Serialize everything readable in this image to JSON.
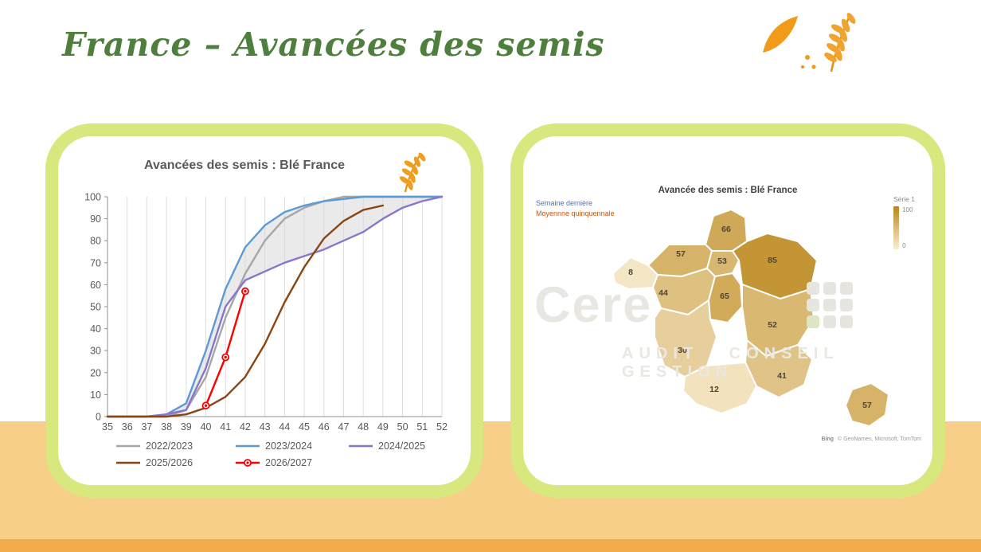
{
  "page": {
    "title": "France – Avancées des semis"
  },
  "icons": {
    "leaf": "leaf-icon",
    "wheat": "wheat-ear-icon",
    "dots": "scatter-dots-icon"
  },
  "chart_data": [
    {
      "type": "line",
      "title": "Avancées des semis : Blé France",
      "x": [
        35,
        36,
        37,
        38,
        39,
        40,
        41,
        42,
        43,
        44,
        45,
        46,
        47,
        48,
        49,
        50,
        51,
        52
      ],
      "xlabel": "",
      "ylabel": "",
      "ylim": [
        0,
        100
      ],
      "yticks": [
        0,
        10,
        20,
        30,
        40,
        50,
        60,
        70,
        80,
        90,
        100
      ],
      "grid": "vertical",
      "legend_position": "bottom",
      "series": [
        {
          "name": "2022/2023",
          "color": "#a6a6a6",
          "values": [
            0,
            0,
            0,
            0,
            3,
            18,
            45,
            65,
            80,
            90,
            95,
            98,
            100,
            100,
            100,
            100,
            100,
            100
          ]
        },
        {
          "name": "2023/2024",
          "color": "#5b9bd5",
          "values": [
            0,
            0,
            0,
            1,
            6,
            30,
            58,
            77,
            87,
            93,
            96,
            98,
            99,
            100,
            100,
            100,
            100,
            100
          ]
        },
        {
          "name": "2024/2025",
          "color": "#8a75cc",
          "values": [
            0,
            0,
            0,
            1,
            3,
            22,
            50,
            62,
            66,
            70,
            73,
            76,
            80,
            84,
            90,
            95,
            98,
            100
          ]
        },
        {
          "name": "2025/2026",
          "color": "#8a4512",
          "values": [
            0,
            0,
            0,
            0,
            1,
            4,
            9,
            18,
            33,
            52,
            68,
            81,
            89,
            94,
            96,
            null,
            null,
            null
          ]
        },
        {
          "name": "2026/2027",
          "color": "#ff0000",
          "marker": "circle",
          "values": [
            null,
            null,
            null,
            null,
            null,
            5,
            27,
            57,
            null,
            null,
            null,
            null,
            null,
            null,
            null,
            null,
            null,
            null
          ]
        }
      ],
      "band": {
        "between": [
          "2023/2024",
          "2024/2025"
        ],
        "color": "#d9d9d9"
      }
    },
    {
      "type": "heatmap",
      "title": "Avancée des semis : Blé France",
      "legend": [
        {
          "label": "Semaine dernière",
          "color": "#4472c4"
        },
        {
          "label": "Moyennne quinquennale",
          "color": "#cc5510"
        }
      ],
      "scale": {
        "label": "Série 1",
        "max": "100",
        "min": "0",
        "low_color": "#f9efd5",
        "high_color": "#bb8517"
      },
      "regions": [
        {
          "value": 66
        },
        {
          "value": 57
        },
        {
          "value": 53
        },
        {
          "value": 85
        },
        {
          "value": 8
        },
        {
          "value": 44
        },
        {
          "value": 65
        },
        {
          "value": 52
        },
        {
          "value": 30
        },
        {
          "value": 41
        },
        {
          "value": 12
        },
        {
          "value": 57
        }
      ],
      "attribution": "© GeoNames, Microsoft, TomTom",
      "provider": "Bing"
    }
  ],
  "watermark": {
    "brand": "Cere",
    "tagline": "AUDIT CONSEIL GESTION"
  }
}
